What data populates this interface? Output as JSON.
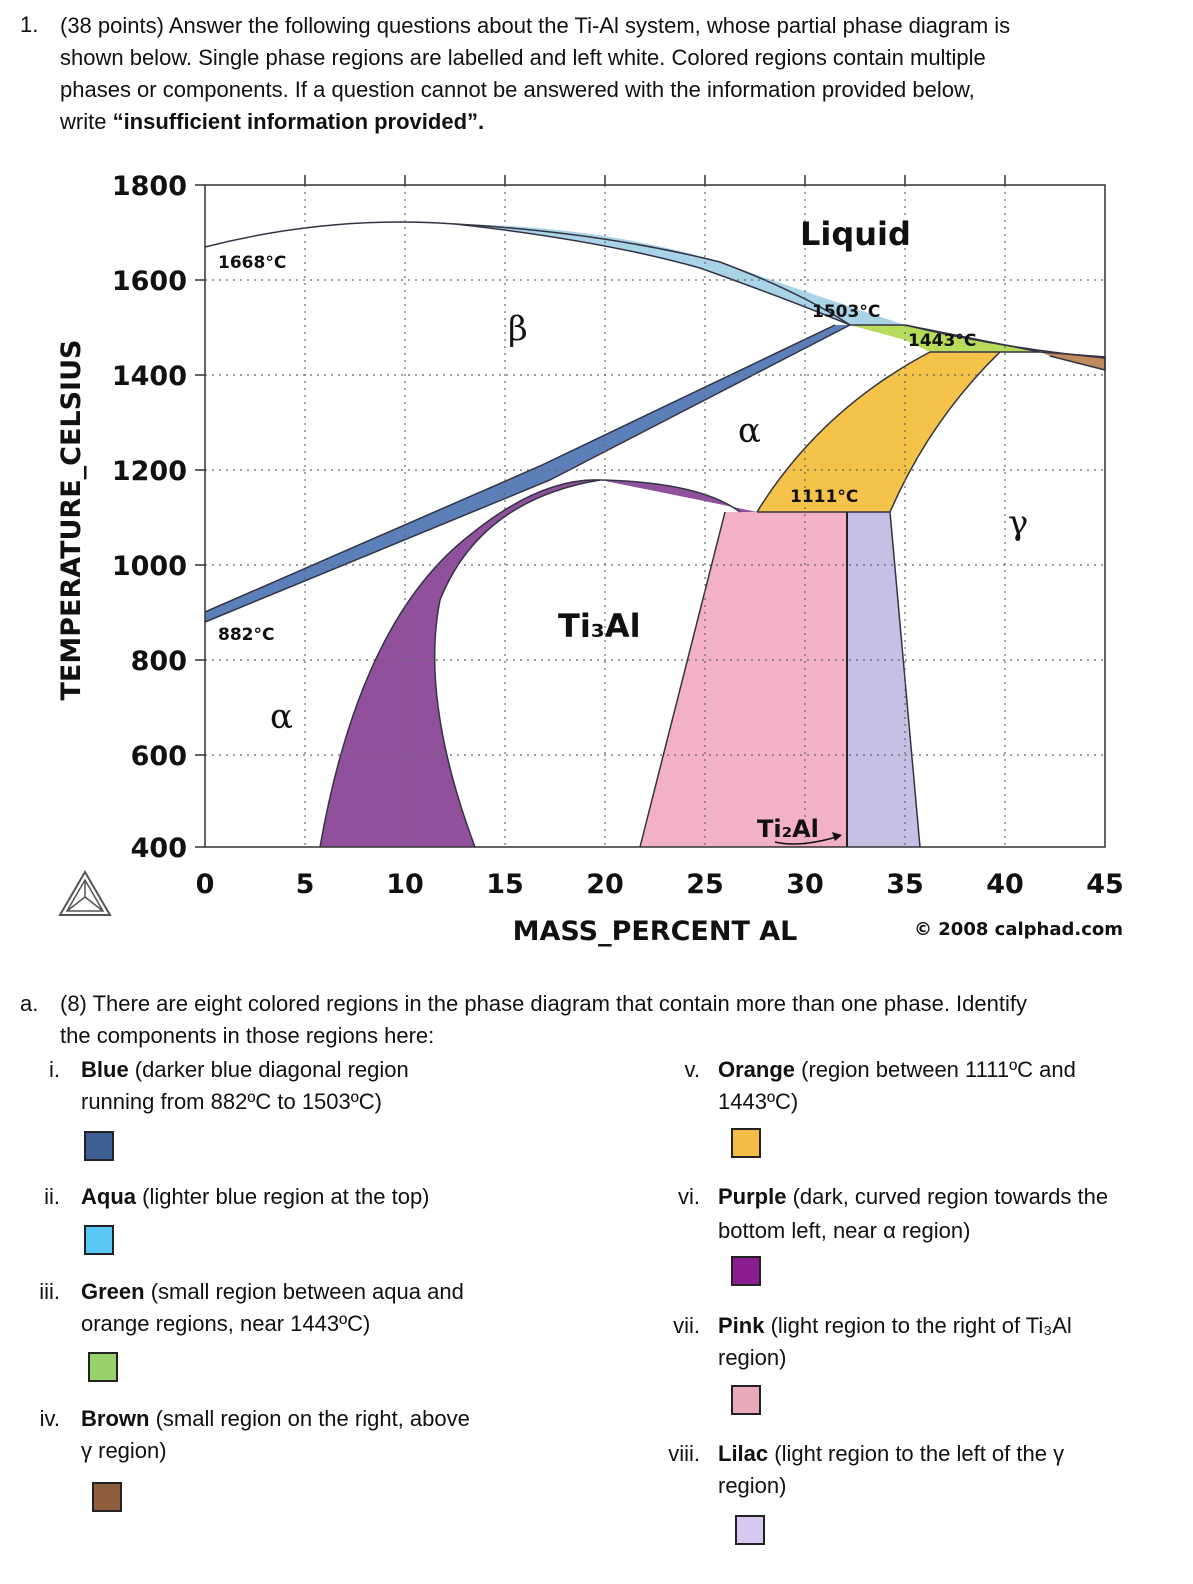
{
  "question": {
    "number": "1.",
    "lines": [
      "(38 points) Answer the following questions about the Ti-Al system, whose partial phase diagram is",
      "shown below. Single phase regions are labelled and left white. Colored regions contain multiple",
      "phases or components. If a question cannot be answered with the information provided below,"
    ],
    "last_line_prefix": "write ",
    "last_line_bold": "“insufficient information provided”."
  },
  "figure": {
    "y_axis_title": "TEMPERATURE_CELSIUS",
    "x_axis_title": "MASS_PERCENT AL",
    "copyright": "© 2008 calphad.com",
    "y_ticks": [
      "1800",
      "1600",
      "1400",
      "1200",
      "1000",
      "800",
      "600",
      "400"
    ],
    "x_ticks": [
      "0",
      "5",
      "10",
      "15",
      "20",
      "25",
      "30",
      "35",
      "40",
      "45"
    ],
    "temps": {
      "t1668": "1668°C",
      "t1503": "1503°C",
      "t1443": "1443°C",
      "t1111": "1111°C",
      "t882": "882°C"
    },
    "phase_labels": {
      "liquid": "Liquid",
      "beta": "β",
      "alpha_high": "α",
      "alpha_low": "α",
      "gamma": "γ",
      "ti3al": "Ti₃Al",
      "ti2al": "Ti₂Al"
    },
    "colors": {
      "blue_region": "#5b7fb8",
      "aqua_region": "#a9d4e8",
      "green_region": "#b7dc5c",
      "brown_region": "#c08a5c",
      "orange_region": "#f5c34a",
      "purple_region": "#91509c",
      "pink_region": "#f2b1c6",
      "lilac_region": "#c7bfe4"
    }
  },
  "part_a": {
    "label": "a.",
    "line1": "(8) There are eight colored regions in the phase diagram that contain more than one phase. Identify",
    "line2": "the components in those regions here:"
  },
  "items": [
    {
      "num": "i.",
      "bold": "Blue",
      "rest": " (darker blue diagonal region",
      "line2": "running from 882ºC to 1503ºC)",
      "color": "#3d5f93"
    },
    {
      "num": "ii.",
      "bold": "Aqua",
      "rest": " (lighter blue region at the top)",
      "line2": "",
      "color": "#5ac8f5"
    },
    {
      "num": "iii.",
      "bold": "Green",
      "rest": " (small region between aqua and",
      "line2": "orange regions, near 1443ºC)",
      "color": "#98d16a"
    },
    {
      "num": "iv.",
      "bold": "Brown",
      "rest": " (small region on the right, above",
      "line2": "γ region)",
      "color": "#8f5e3c"
    },
    {
      "num": "v.",
      "bold": "Orange",
      "rest": " (region between 1111ºC and",
      "line2": "1443ºC)",
      "color": "#f3bd45"
    },
    {
      "num": "vi.",
      "bold": "Purple",
      "rest": " (dark, curved region towards the",
      "line2": "bottom left, near α region)",
      "color": "#8c1d91"
    },
    {
      "num": "vii.",
      "bold": "Pink",
      "rest": " (light region to the right of Ti₃Al",
      "line2": "region)",
      "color": "#e8aab8"
    },
    {
      "num": "viii.",
      "bold": "Lilac",
      "rest": " (light region to the left of the γ",
      "line2": "region)",
      "color": "#d6c8f0"
    }
  ]
}
